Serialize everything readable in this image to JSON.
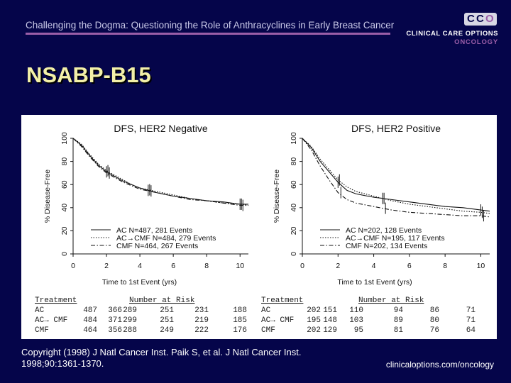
{
  "header": {
    "title": "Challenging the Dogma: Questioning the Role of Anthracyclines in Early Breast Cancer",
    "accent_color": "#9b5ea8",
    "background_color": "#05054a"
  },
  "logo": {
    "mark_letters": [
      "C",
      "C",
      "O"
    ],
    "line1": "CLINICAL CARE OPTIONS",
    "line2": "ONCOLOGY"
  },
  "slide_title": "NSABP-B15",
  "footer": {
    "copyright": "Copyright (1998) J Natl Cancer Inst. Paik S, et al. J Natl Cancer Inst. 1998;90:1361-1370.",
    "url": "clinicaloptions.com/oncology"
  },
  "risk_table": {
    "left": {
      "treatment_header": "Treatment",
      "risk_header": "Number at Risk",
      "rows": [
        {
          "label": "AC",
          "values": [
            "487",
            "366",
            "289",
            "251",
            "231",
            "188"
          ]
        },
        {
          "label": "AC→ CMF",
          "values": [
            "484",
            "371",
            "299",
            "251",
            "219",
            "185"
          ]
        },
        {
          "label": "CMF",
          "values": [
            "464",
            "356",
            "288",
            "249",
            "222",
            "176"
          ]
        }
      ]
    },
    "right": {
      "treatment_header": "Treatment",
      "risk_header": "Number at Risk",
      "rows": [
        {
          "label": "AC",
          "values": [
            "202",
            "151",
            "110",
            "94",
            "86",
            "71"
          ]
        },
        {
          "label": "AC→ CMF",
          "values": [
            "195",
            "148",
            "103",
            "89",
            "80",
            "71"
          ]
        },
        {
          "label": "CMF",
          "values": [
            "202",
            "129",
            "95",
            "81",
            "76",
            "64"
          ]
        }
      ]
    }
  },
  "chart_data": [
    {
      "type": "line",
      "title": "DFS, HER2 Negative",
      "xlabel": "Time to 1st Event (yrs)",
      "ylabel": "% Disease-Free",
      "xlim": [
        0,
        10.5
      ],
      "ylim": [
        0,
        100
      ],
      "xticks": [
        0,
        2,
        4,
        6,
        8,
        10
      ],
      "yticks": [
        0,
        20,
        40,
        60,
        80,
        100
      ],
      "grid": false,
      "legend_position": "bottom-left",
      "series": [
        {
          "name": "AC N=487, 281 Events",
          "style": "solid",
          "x": [
            0,
            0.5,
            1,
            1.5,
            2,
            2.5,
            3,
            3.5,
            4,
            5,
            6,
            7,
            8,
            9,
            10,
            10.5
          ],
          "y": [
            100,
            94,
            85,
            77,
            71,
            67,
            63,
            60,
            57,
            53,
            50,
            48,
            46,
            45,
            43,
            43
          ]
        },
        {
          "name": "AC→CMF N=484, 279 Events",
          "style": "dotted",
          "x": [
            0,
            0.5,
            1,
            1.5,
            2,
            2.5,
            3,
            3.5,
            4,
            5,
            6,
            7,
            8,
            9,
            10,
            10.5
          ],
          "y": [
            100,
            95,
            86,
            78,
            72,
            68,
            64,
            60,
            57,
            54,
            51,
            48,
            46,
            44,
            43,
            42
          ]
        },
        {
          "name": "CMF N=464, 267 Events",
          "style": "dash-dot",
          "x": [
            0,
            0.5,
            1,
            1.5,
            2,
            2.5,
            3,
            3.5,
            4,
            5,
            6,
            7,
            8,
            9,
            10,
            10.5
          ],
          "y": [
            100,
            93,
            84,
            76,
            70,
            66,
            62,
            59,
            56,
            53,
            50,
            47,
            46,
            44,
            42,
            42
          ]
        }
      ]
    },
    {
      "type": "line",
      "title": "DFS, HER2 Positive",
      "xlabel": "Time to 1st Event (yrs)",
      "ylabel": "% Disease-Free",
      "xlim": [
        0,
        10.5
      ],
      "ylim": [
        0,
        100
      ],
      "xticks": [
        0,
        2,
        4,
        6,
        8,
        10
      ],
      "yticks": [
        0,
        20,
        40,
        60,
        80,
        100
      ],
      "grid": false,
      "legend_position": "bottom-left",
      "series": [
        {
          "name": "AC N=202, 128 Events",
          "style": "solid",
          "x": [
            0,
            0.5,
            1,
            1.5,
            2,
            2.5,
            3,
            4,
            5,
            6,
            7,
            8,
            9,
            10,
            10.5
          ],
          "y": [
            100,
            92,
            80,
            71,
            62,
            55,
            52,
            49,
            47,
            45,
            43,
            41,
            40,
            38,
            37
          ]
        },
        {
          "name": "AC→CMF N=195, 117 Events",
          "style": "dotted",
          "x": [
            0,
            0.5,
            1,
            1.5,
            2,
            2.5,
            3,
            4,
            5,
            6,
            7,
            8,
            9,
            10,
            10.5
          ],
          "y": [
            100,
            93,
            82,
            73,
            64,
            58,
            54,
            50,
            46,
            43,
            41,
            39,
            37,
            36,
            35
          ]
        },
        {
          "name": "CMF N=202, 134 Events",
          "style": "dash-dot",
          "x": [
            0,
            0.5,
            1,
            1.5,
            2,
            2.5,
            3,
            4,
            5,
            6,
            7,
            8,
            9,
            10,
            10.5
          ],
          "y": [
            100,
            90,
            76,
            64,
            53,
            47,
            44,
            41,
            38,
            36,
            35,
            34,
            33,
            33,
            32
          ]
        }
      ]
    }
  ]
}
